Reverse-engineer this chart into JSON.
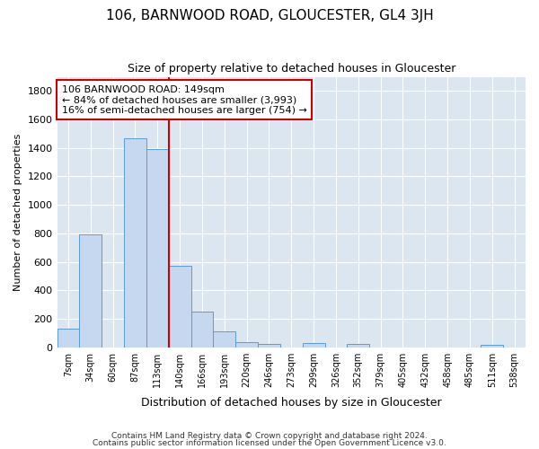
{
  "title": "106, BARNWOOD ROAD, GLOUCESTER, GL4 3JH",
  "subtitle": "Size of property relative to detached houses in Gloucester",
  "xlabel": "Distribution of detached houses by size in Gloucester",
  "ylabel": "Number of detached properties",
  "categories": [
    "7sqm",
    "34sqm",
    "60sqm",
    "87sqm",
    "113sqm",
    "140sqm",
    "166sqm",
    "193sqm",
    "220sqm",
    "246sqm",
    "273sqm",
    "299sqm",
    "326sqm",
    "352sqm",
    "379sqm",
    "405sqm",
    "432sqm",
    "458sqm",
    "485sqm",
    "511sqm",
    "538sqm"
  ],
  "values": [
    130,
    790,
    0,
    1470,
    1390,
    570,
    250,
    110,
    35,
    25,
    0,
    30,
    0,
    20,
    0,
    0,
    0,
    0,
    0,
    15,
    0
  ],
  "bar_color": "#c5d8f0",
  "bar_edge_color": "#5b9bd5",
  "background_color": "#ffffff",
  "grid_color": "#dce6f1",
  "annotation_line1": "106 BARNWOOD ROAD: 149sqm",
  "annotation_line2": "← 84% of detached houses are smaller (3,993)",
  "annotation_line3": "16% of semi-detached houses are larger (754) →",
  "annotation_box_color": "#ffffff",
  "annotation_box_edge_color": "#cc0000",
  "red_line_x": 4.5,
  "ylim": [
    0,
    1900
  ],
  "yticks": [
    0,
    200,
    400,
    600,
    800,
    1000,
    1200,
    1400,
    1600,
    1800
  ],
  "footnote1": "Contains HM Land Registry data © Crown copyright and database right 2024.",
  "footnote2": "Contains public sector information licensed under the Open Government Licence v3.0."
}
